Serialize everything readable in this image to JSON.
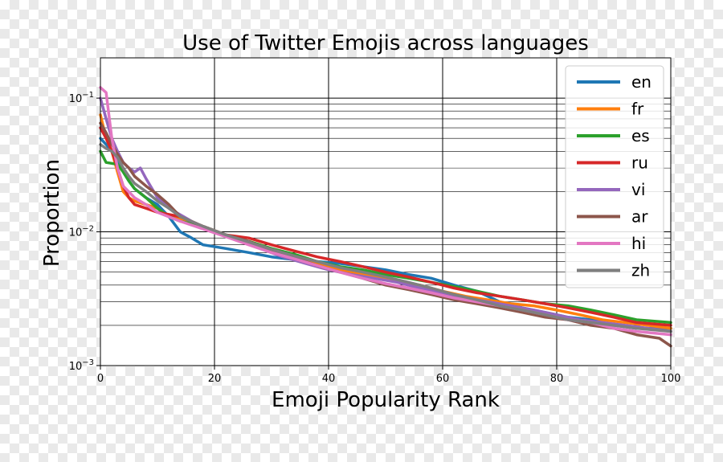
{
  "chart_data": {
    "type": "line",
    "title": "Use of Twitter Emojis across languages",
    "xlabel": "Emoji Popularity Rank",
    "ylabel": "Proportion",
    "xlim": [
      0,
      100
    ],
    "ylim": [
      0.001,
      0.2
    ],
    "y_scale": "log",
    "x_ticks": [
      0,
      20,
      40,
      60,
      80,
      100
    ],
    "y_ticks": [
      {
        "value": 0.1,
        "base": "10",
        "exp": "−1"
      },
      {
        "value": 0.01,
        "base": "10",
        "exp": "−2"
      },
      {
        "value": 0.001,
        "base": "10",
        "exp": "−3"
      }
    ],
    "grid": true,
    "legend_position": "upper-right",
    "series": [
      {
        "name": "en",
        "color": "#1f77b4",
        "points": [
          [
            0,
            0.05
          ],
          [
            1,
            0.045
          ],
          [
            2,
            0.04
          ],
          [
            3,
            0.035
          ],
          [
            4,
            0.028
          ],
          [
            5,
            0.024
          ],
          [
            6,
            0.021
          ],
          [
            8,
            0.018
          ],
          [
            10,
            0.016
          ],
          [
            12,
            0.013
          ],
          [
            14,
            0.01
          ],
          [
            16,
            0.009
          ],
          [
            18,
            0.008
          ],
          [
            22,
            0.0075
          ],
          [
            26,
            0.007
          ],
          [
            30,
            0.0065
          ],
          [
            34,
            0.0062
          ],
          [
            38,
            0.006
          ],
          [
            42,
            0.0058
          ],
          [
            46,
            0.0055
          ],
          [
            50,
            0.0052
          ],
          [
            54,
            0.0048
          ],
          [
            58,
            0.0045
          ],
          [
            62,
            0.004
          ],
          [
            66,
            0.0036
          ],
          [
            70,
            0.003
          ],
          [
            74,
            0.0027
          ],
          [
            78,
            0.0025
          ],
          [
            82,
            0.0023
          ],
          [
            86,
            0.0022
          ],
          [
            90,
            0.002
          ],
          [
            94,
            0.0019
          ],
          [
            100,
            0.0019
          ]
        ]
      },
      {
        "name": "fr",
        "color": "#ff7f0e",
        "points": [
          [
            0,
            0.075
          ],
          [
            1,
            0.05
          ],
          [
            2,
            0.04
          ],
          [
            3,
            0.028
          ],
          [
            4,
            0.02
          ],
          [
            5,
            0.018
          ],
          [
            6,
            0.017
          ],
          [
            8,
            0.016
          ],
          [
            10,
            0.015
          ],
          [
            12,
            0.013
          ],
          [
            16,
            0.012
          ],
          [
            20,
            0.01
          ],
          [
            24,
            0.009
          ],
          [
            28,
            0.008
          ],
          [
            32,
            0.007
          ],
          [
            36,
            0.0062
          ],
          [
            40,
            0.0055
          ],
          [
            44,
            0.005
          ],
          [
            48,
            0.0046
          ],
          [
            52,
            0.0043
          ],
          [
            56,
            0.004
          ],
          [
            60,
            0.0036
          ],
          [
            64,
            0.0033
          ],
          [
            68,
            0.0031
          ],
          [
            72,
            0.0029
          ],
          [
            76,
            0.0028
          ],
          [
            80,
            0.0026
          ],
          [
            84,
            0.0024
          ],
          [
            88,
            0.0022
          ],
          [
            92,
            0.0021
          ],
          [
            96,
            0.002
          ],
          [
            100,
            0.0019
          ]
        ]
      },
      {
        "name": "es",
        "color": "#2ca02c",
        "points": [
          [
            0,
            0.04
          ],
          [
            1,
            0.033
          ],
          [
            3,
            0.032
          ],
          [
            4,
            0.028
          ],
          [
            5,
            0.024
          ],
          [
            6,
            0.021
          ],
          [
            8,
            0.018
          ],
          [
            10,
            0.015
          ],
          [
            12,
            0.013
          ],
          [
            14,
            0.012
          ],
          [
            18,
            0.011
          ],
          [
            22,
            0.0095
          ],
          [
            26,
            0.0085
          ],
          [
            30,
            0.0075
          ],
          [
            34,
            0.0068
          ],
          [
            38,
            0.006
          ],
          [
            42,
            0.0055
          ],
          [
            46,
            0.0052
          ],
          [
            50,
            0.0048
          ],
          [
            54,
            0.0045
          ],
          [
            58,
            0.0042
          ],
          [
            62,
            0.0039
          ],
          [
            66,
            0.0036
          ],
          [
            70,
            0.0033
          ],
          [
            74,
            0.0031
          ],
          [
            78,
            0.0029
          ],
          [
            82,
            0.0028
          ],
          [
            86,
            0.0026
          ],
          [
            90,
            0.0024
          ],
          [
            94,
            0.0022
          ],
          [
            100,
            0.0021
          ]
        ]
      },
      {
        "name": "ru",
        "color": "#d62728",
        "points": [
          [
            0,
            0.06
          ],
          [
            1,
            0.05
          ],
          [
            2,
            0.04
          ],
          [
            3,
            0.03
          ],
          [
            4,
            0.022
          ],
          [
            5,
            0.018
          ],
          [
            6,
            0.016
          ],
          [
            8,
            0.015
          ],
          [
            10,
            0.014
          ],
          [
            14,
            0.013
          ],
          [
            18,
            0.011
          ],
          [
            22,
            0.0095
          ],
          [
            26,
            0.009
          ],
          [
            30,
            0.008
          ],
          [
            34,
            0.0072
          ],
          [
            38,
            0.0065
          ],
          [
            42,
            0.006
          ],
          [
            46,
            0.0055
          ],
          [
            50,
            0.005
          ],
          [
            54,
            0.0046
          ],
          [
            58,
            0.0042
          ],
          [
            62,
            0.0038
          ],
          [
            66,
            0.0035
          ],
          [
            70,
            0.0033
          ],
          [
            74,
            0.0031
          ],
          [
            78,
            0.0029
          ],
          [
            82,
            0.0027
          ],
          [
            86,
            0.0025
          ],
          [
            90,
            0.0023
          ],
          [
            94,
            0.0021
          ],
          [
            100,
            0.002
          ]
        ]
      },
      {
        "name": "vi",
        "color": "#9467bd",
        "points": [
          [
            0,
            0.1
          ],
          [
            1,
            0.07
          ],
          [
            2,
            0.05
          ],
          [
            3,
            0.04
          ],
          [
            4,
            0.033
          ],
          [
            5,
            0.03
          ],
          [
            6,
            0.028
          ],
          [
            7,
            0.03
          ],
          [
            8,
            0.025
          ],
          [
            10,
            0.018
          ],
          [
            12,
            0.015
          ],
          [
            16,
            0.012
          ],
          [
            20,
            0.01
          ],
          [
            24,
            0.0088
          ],
          [
            28,
            0.0075
          ],
          [
            32,
            0.0065
          ],
          [
            36,
            0.0058
          ],
          [
            40,
            0.0052
          ],
          [
            44,
            0.0048
          ],
          [
            48,
            0.0045
          ],
          [
            52,
            0.0042
          ],
          [
            56,
            0.0038
          ],
          [
            60,
            0.0035
          ],
          [
            64,
            0.0032
          ],
          [
            68,
            0.003
          ],
          [
            72,
            0.0028
          ],
          [
            76,
            0.0026
          ],
          [
            80,
            0.0024
          ],
          [
            84,
            0.0022
          ],
          [
            88,
            0.0021
          ],
          [
            92,
            0.002
          ],
          [
            96,
            0.0019
          ],
          [
            100,
            0.0018
          ]
        ]
      },
      {
        "name": "ar",
        "color": "#8c564b",
        "points": [
          [
            0,
            0.065
          ],
          [
            1,
            0.055
          ],
          [
            2,
            0.045
          ],
          [
            3,
            0.038
          ],
          [
            4,
            0.033
          ],
          [
            5,
            0.03
          ],
          [
            6,
            0.026
          ],
          [
            8,
            0.022
          ],
          [
            10,
            0.019
          ],
          [
            12,
            0.016
          ],
          [
            14,
            0.013
          ],
          [
            18,
            0.011
          ],
          [
            22,
            0.0095
          ],
          [
            26,
            0.0085
          ],
          [
            30,
            0.0072
          ],
          [
            34,
            0.0064
          ],
          [
            38,
            0.0056
          ],
          [
            42,
            0.005
          ],
          [
            46,
            0.0045
          ],
          [
            50,
            0.004
          ],
          [
            54,
            0.0037
          ],
          [
            58,
            0.0034
          ],
          [
            62,
            0.0031
          ],
          [
            66,
            0.0029
          ],
          [
            70,
            0.0027
          ],
          [
            74,
            0.0025
          ],
          [
            78,
            0.0023
          ],
          [
            82,
            0.0022
          ],
          [
            86,
            0.002
          ],
          [
            90,
            0.0019
          ],
          [
            94,
            0.0017
          ],
          [
            98,
            0.0016
          ],
          [
            100,
            0.0014
          ]
        ]
      },
      {
        "name": "hi",
        "color": "#e377c2",
        "points": [
          [
            0,
            0.12
          ],
          [
            1,
            0.11
          ],
          [
            2,
            0.05
          ],
          [
            3,
            0.03
          ],
          [
            4,
            0.022
          ],
          [
            6,
            0.018
          ],
          [
            8,
            0.016
          ],
          [
            10,
            0.014
          ],
          [
            14,
            0.012
          ],
          [
            18,
            0.0105
          ],
          [
            22,
            0.0092
          ],
          [
            26,
            0.008
          ],
          [
            30,
            0.007
          ],
          [
            34,
            0.0063
          ],
          [
            38,
            0.0056
          ],
          [
            42,
            0.005
          ],
          [
            46,
            0.0045
          ],
          [
            50,
            0.0041
          ],
          [
            54,
            0.0038
          ],
          [
            58,
            0.0035
          ],
          [
            62,
            0.0032
          ],
          [
            66,
            0.003
          ],
          [
            70,
            0.0028
          ],
          [
            74,
            0.0026
          ],
          [
            78,
            0.0024
          ],
          [
            82,
            0.0022
          ],
          [
            86,
            0.0021
          ],
          [
            90,
            0.0019
          ],
          [
            94,
            0.0018
          ],
          [
            100,
            0.0017
          ]
        ]
      },
      {
        "name": "zh",
        "color": "#7f7f7f",
        "points": [
          [
            0,
            0.045
          ],
          [
            1,
            0.042
          ],
          [
            2,
            0.04
          ],
          [
            3,
            0.036
          ],
          [
            4,
            0.03
          ],
          [
            5,
            0.026
          ],
          [
            6,
            0.023
          ],
          [
            8,
            0.02
          ],
          [
            10,
            0.017
          ],
          [
            12,
            0.015
          ],
          [
            14,
            0.013
          ],
          [
            18,
            0.011
          ],
          [
            22,
            0.0095
          ],
          [
            26,
            0.0084
          ],
          [
            30,
            0.0074
          ],
          [
            34,
            0.0066
          ],
          [
            38,
            0.006
          ],
          [
            42,
            0.0054
          ],
          [
            46,
            0.005
          ],
          [
            50,
            0.0046
          ],
          [
            54,
            0.0042
          ],
          [
            58,
            0.0038
          ],
          [
            62,
            0.0034
          ],
          [
            66,
            0.0031
          ],
          [
            70,
            0.0028
          ],
          [
            74,
            0.0026
          ],
          [
            78,
            0.0024
          ],
          [
            82,
            0.0022
          ],
          [
            86,
            0.0021
          ],
          [
            90,
            0.002
          ],
          [
            94,
            0.0019
          ],
          [
            100,
            0.0018
          ]
        ]
      }
    ]
  }
}
